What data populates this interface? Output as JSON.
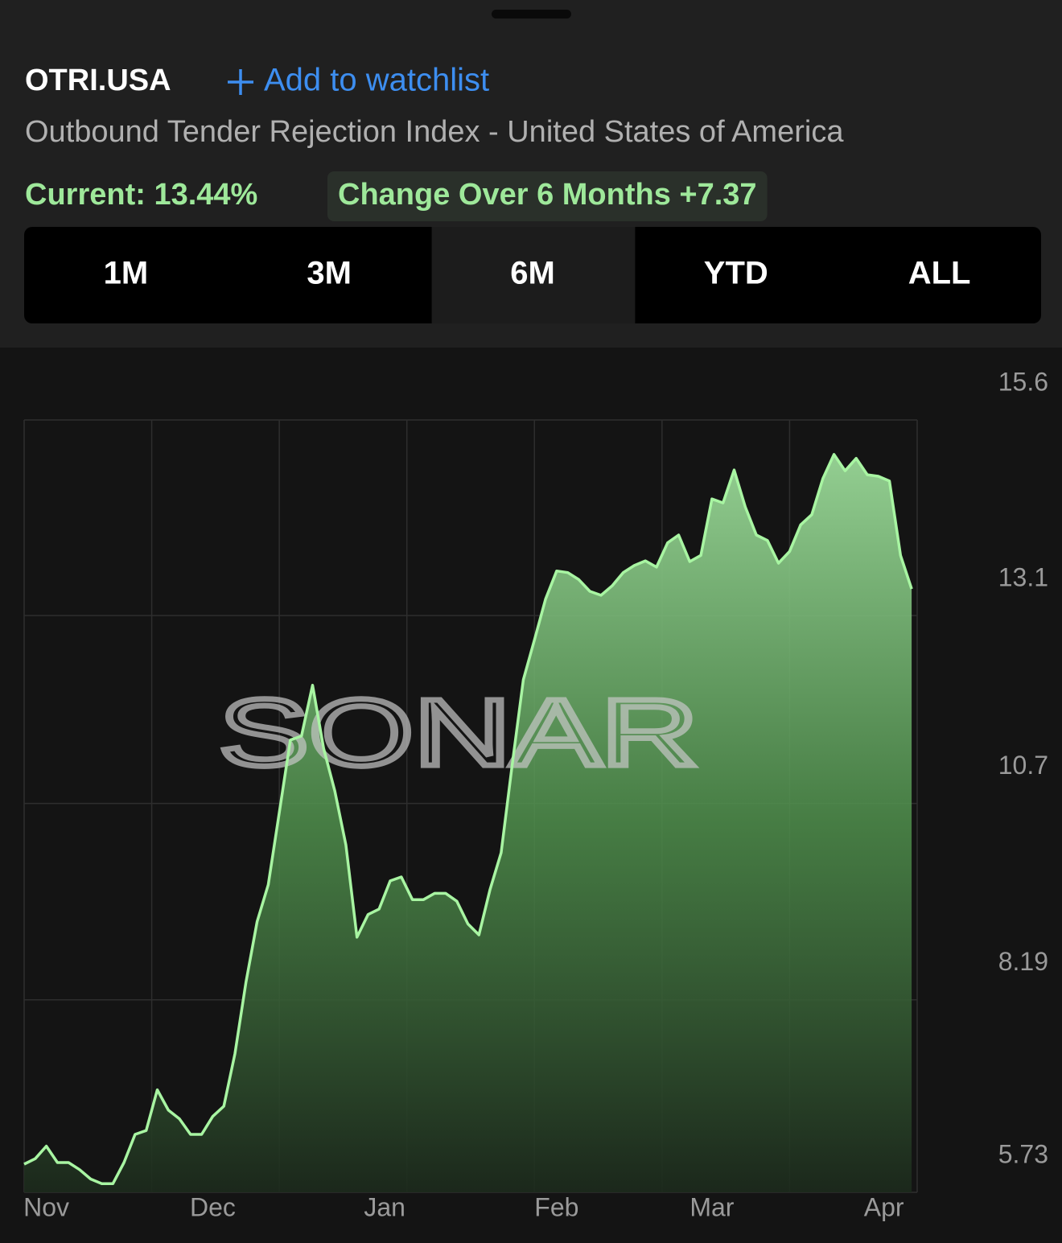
{
  "header": {
    "symbol": "OTRI.USA",
    "watchlist_action": "Add to watchlist",
    "description": "Outbound Tender Rejection Index - United States of America",
    "current": "Current: 13.44%",
    "change": "Change Over 6 Months +7.37"
  },
  "tabs": {
    "options": [
      "1M",
      "3M",
      "6M",
      "YTD",
      "ALL"
    ],
    "selected": "6M"
  },
  "chart_data": {
    "type": "line",
    "watermark": "SONAR",
    "color": "#a8f5a2",
    "grid": true,
    "x": [
      0,
      2,
      4,
      6,
      8,
      10,
      12,
      14,
      16,
      18,
      20,
      22,
      24,
      26,
      28,
      30,
      32,
      34,
      36,
      38,
      40,
      42,
      44,
      46,
      48,
      50,
      52,
      54,
      56,
      58,
      60,
      62,
      64,
      66,
      68,
      70,
      72,
      74,
      76,
      78,
      80,
      82,
      84,
      86,
      88,
      90,
      92,
      94,
      96,
      98,
      100,
      102,
      104,
      106,
      108,
      110,
      112,
      114,
      116,
      118,
      120,
      122,
      124,
      126,
      128,
      130,
      132,
      134,
      136,
      138,
      140,
      142,
      144,
      146,
      148,
      150,
      152,
      154,
      156,
      158,
      160
    ],
    "values": [
      6.09,
      6.16,
      6.32,
      6.11,
      6.11,
      6.02,
      5.9,
      5.84,
      5.84,
      6.11,
      6.47,
      6.52,
      7.04,
      6.78,
      6.67,
      6.47,
      6.47,
      6.7,
      6.83,
      7.5,
      8.42,
      9.19,
      9.66,
      10.58,
      11.51,
      11.56,
      12.21,
      11.4,
      10.86,
      10.17,
      8.99,
      9.28,
      9.35,
      9.71,
      9.76,
      9.47,
      9.47,
      9.55,
      9.55,
      9.45,
      9.16,
      9.02,
      9.6,
      10.07,
      11.2,
      12.28,
      12.79,
      13.31,
      13.67,
      13.65,
      13.56,
      13.41,
      13.36,
      13.48,
      13.65,
      13.74,
      13.8,
      13.72,
      14.03,
      14.13,
      13.79,
      13.87,
      14.59,
      14.54,
      14.96,
      14.49,
      14.13,
      14.06,
      13.77,
      13.92,
      14.26,
      14.39,
      14.85,
      15.16,
      14.95,
      15.11,
      14.9,
      14.88,
      14.82,
      13.87,
      13.44
    ],
    "xlim": [
      0,
      161
    ],
    "ylim": [
      5.73,
      15.6
    ],
    "yticks": [
      15.6,
      13.1,
      10.7,
      8.19,
      5.73
    ],
    "xticks": [
      {
        "value": 4,
        "label": "Nov"
      },
      {
        "value": 34,
        "label": "Dec"
      },
      {
        "value": 65,
        "label": "Jan"
      },
      {
        "value": 96,
        "label": "Feb"
      },
      {
        "value": 124,
        "label": "Mar"
      },
      {
        "value": 155,
        "label": "Apr"
      }
    ]
  }
}
